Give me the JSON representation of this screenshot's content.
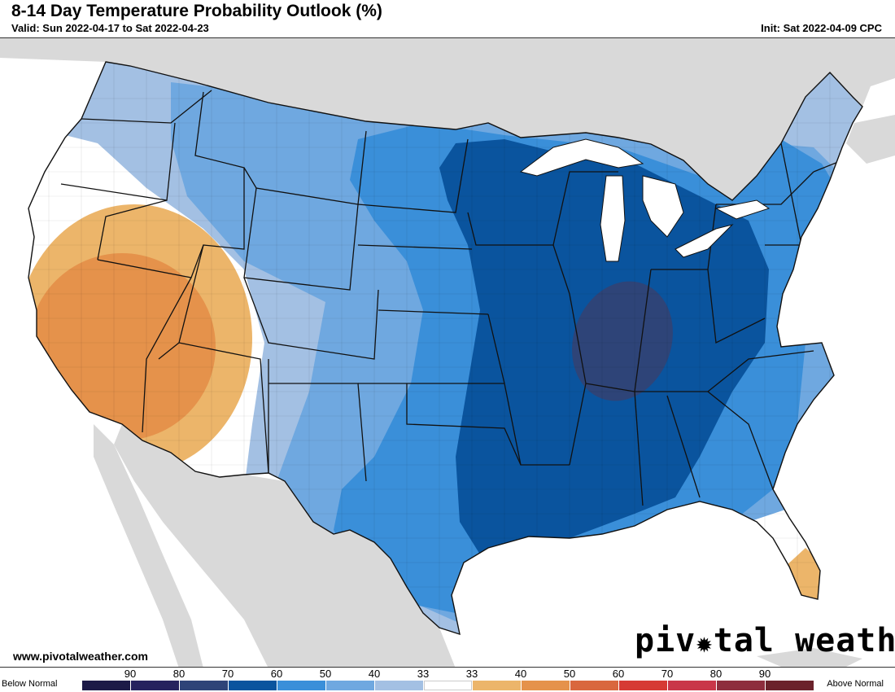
{
  "header": {
    "title": "8-14 Day Temperature Probability Outlook (%)",
    "valid": "Valid: Sun 2022-04-17 to Sat 2022-04-23",
    "init": "Init: Sat 2022-04-09 CPC"
  },
  "footer": {
    "website": "www.pivotalweather.com",
    "brand_left": "piv",
    "brand_right": "tal weather",
    "brand_gear": "✹"
  },
  "legend": {
    "below_label": "Below Normal",
    "above_label": "Above Normal",
    "ticks": [
      "90",
      "80",
      "70",
      "60",
      "50",
      "40",
      "33",
      "33",
      "40",
      "50",
      "60",
      "70",
      "80",
      "90"
    ],
    "colors": [
      "#1c1a47",
      "#25225e",
      "#2e4478",
      "#0a549e",
      "#3a8fd9",
      "#6fa8e0",
      "#a3c0e3",
      "#ffffff",
      "#ecb56a",
      "#e5924b",
      "#d9673e",
      "#d63a34",
      "#c93649",
      "#8e2d3d",
      "#6b222b"
    ]
  },
  "colors": {
    "land_outside": "#d9d9d9",
    "water": "#ffffff",
    "below_33": "#a3c0e3",
    "below_40": "#6fa8e0",
    "below_50": "#3a8fd9",
    "below_60": "#0a549e",
    "below_70": "#2e4478",
    "above_33": "#ffffff",
    "above_40": "#ecb56a",
    "above_50": "#e5924b"
  }
}
